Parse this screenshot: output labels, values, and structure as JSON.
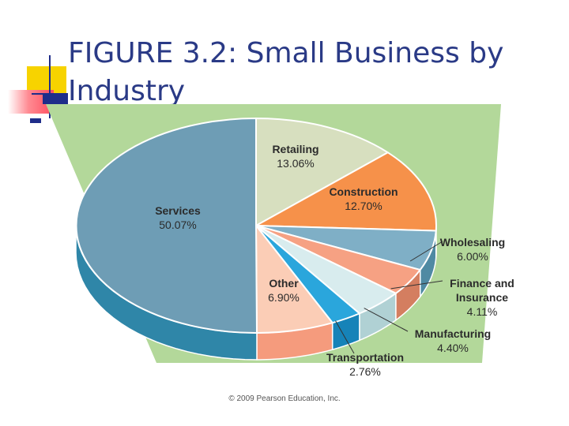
{
  "title": "FIGURE 3.2:  Small Business by Industry",
  "copyright": "© 2009 Pearson Education, Inc.",
  "colors": {
    "background_panel": "#b3d89a",
    "title": "#2a3a86"
  },
  "chart_data": {
    "type": "pie",
    "title": "",
    "slices": [
      {
        "name": "Retailing",
        "label_lines": [
          "Retailing"
        ],
        "value": 13.06,
        "display": "13.06%",
        "color": "#d7dfbf",
        "side": "#b7c09f"
      },
      {
        "name": "Construction",
        "label_lines": [
          "Construction"
        ],
        "value": 12.7,
        "display": "12.70%",
        "color": "#f6914a",
        "side": "#d27432"
      },
      {
        "name": "Wholesaling",
        "label_lines": [
          "Wholesaling"
        ],
        "value": 6.0,
        "display": "6.00%",
        "color": "#7fafc6",
        "side": "#4f8aa3"
      },
      {
        "name": "Finance and Insurance",
        "label_lines": [
          "Finance and",
          "Insurance"
        ],
        "value": 4.11,
        "display": "4.11%",
        "color": "#f6a183",
        "side": "#d47e60"
      },
      {
        "name": "Manufacturing",
        "label_lines": [
          "Manufacturing"
        ],
        "value": 4.4,
        "display": "4.40%",
        "color": "#d8ecee",
        "side": "#b0d1d4"
      },
      {
        "name": "Transportation",
        "label_lines": [
          "Transportation"
        ],
        "value": 2.76,
        "display": "2.76%",
        "color": "#2aa6dc",
        "side": "#1683b8"
      },
      {
        "name": "Other",
        "label_lines": [
          "Other"
        ],
        "value": 6.9,
        "display": "6.90%",
        "color": "#fbcdb6",
        "side": "#f59b7d"
      },
      {
        "name": "Services",
        "label_lines": [
          "Services"
        ],
        "value": 50.07,
        "display": "50.07%",
        "color": "#6e9db5",
        "side": "#2f86a8"
      }
    ]
  }
}
